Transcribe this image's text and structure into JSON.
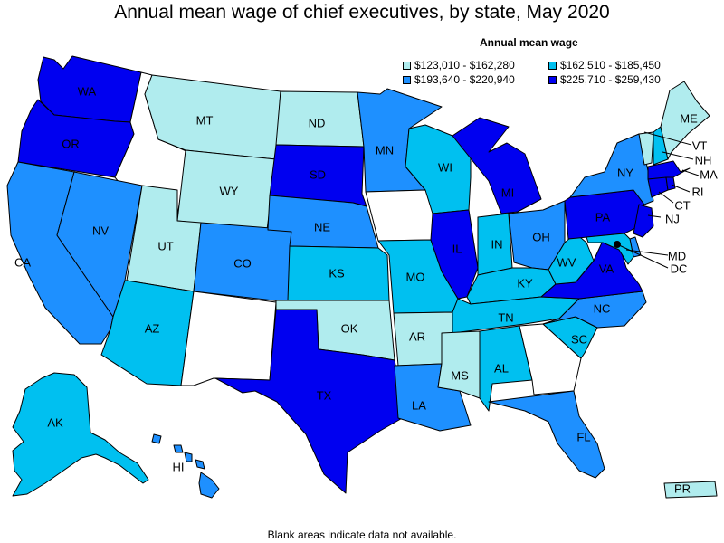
{
  "title": "Annual mean wage of chief executives, by state, May 2020",
  "legend": {
    "title": "Annual mean wage",
    "ranges": [
      {
        "label": "$123,010 - $162,280",
        "color": "#b0ecee"
      },
      {
        "label": "$162,510 - $185,450",
        "color": "#00c0f0"
      },
      {
        "label": "$193,640 - $220,940",
        "color": "#1e90ff"
      },
      {
        "label": "$225,710 - $259,430",
        "color": "#0000f0"
      }
    ]
  },
  "footer": "Blank areas indicate data not available.",
  "colors": {
    "blank": "#ffffff",
    "border": "#000000"
  },
  "states": {
    "WA": {
      "label": "WA",
      "tier": 3
    },
    "OR": {
      "label": "OR",
      "tier": 3
    },
    "CA": {
      "label": "CA",
      "tier": 2
    },
    "NV": {
      "label": "NV",
      "tier": 2
    },
    "ID": {
      "label": "",
      "tier": null
    },
    "MT": {
      "label": "MT",
      "tier": 0
    },
    "WY": {
      "label": "WY",
      "tier": 0
    },
    "UT": {
      "label": "UT",
      "tier": 0
    },
    "AZ": {
      "label": "AZ",
      "tier": 1
    },
    "CO": {
      "label": "CO",
      "tier": 2
    },
    "NM": {
      "label": "",
      "tier": null
    },
    "ND": {
      "label": "ND",
      "tier": 0
    },
    "SD": {
      "label": "SD",
      "tier": 3
    },
    "NE": {
      "label": "NE",
      "tier": 2
    },
    "KS": {
      "label": "KS",
      "tier": 1
    },
    "OK": {
      "label": "OK",
      "tier": 0
    },
    "TX": {
      "label": "TX",
      "tier": 3
    },
    "MN": {
      "label": "MN",
      "tier": 2
    },
    "IA": {
      "label": "",
      "tier": null
    },
    "MO": {
      "label": "MO",
      "tier": 1
    },
    "AR": {
      "label": "AR",
      "tier": 0
    },
    "LA": {
      "label": "LA",
      "tier": 2
    },
    "WI": {
      "label": "WI",
      "tier": 1
    },
    "IL": {
      "label": "IL",
      "tier": 3
    },
    "MI": {
      "label": "MI",
      "tier": 3
    },
    "IN": {
      "label": "IN",
      "tier": 1
    },
    "OH": {
      "label": "OH",
      "tier": 2
    },
    "KY": {
      "label": "KY",
      "tier": 1
    },
    "TN": {
      "label": "TN",
      "tier": 1
    },
    "MS": {
      "label": "MS",
      "tier": 0
    },
    "AL": {
      "label": "AL",
      "tier": 1
    },
    "GA": {
      "label": "",
      "tier": null
    },
    "FL": {
      "label": "FL",
      "tier": 2
    },
    "SC": {
      "label": "SC",
      "tier": 1
    },
    "NC": {
      "label": "NC",
      "tier": 2
    },
    "VA": {
      "label": "VA",
      "tier": 3
    },
    "WV": {
      "label": "WV",
      "tier": 1
    },
    "PA": {
      "label": "PA",
      "tier": 3
    },
    "NY": {
      "label": "NY",
      "tier": 2
    },
    "VT": {
      "label": "VT",
      "tier": 0
    },
    "NH": {
      "label": "NH",
      "tier": 1
    },
    "ME": {
      "label": "ME",
      "tier": 0
    },
    "MA": {
      "label": "MA",
      "tier": 3
    },
    "RI": {
      "label": "RI",
      "tier": 3
    },
    "CT": {
      "label": "CT",
      "tier": 3
    },
    "NJ": {
      "label": "NJ",
      "tier": 3
    },
    "DE": {
      "label": "",
      "tier": 2
    },
    "MD": {
      "label": "MD",
      "tier": 1
    },
    "DC": {
      "label": "DC",
      "tier": 3
    },
    "AK": {
      "label": "AK",
      "tier": 1
    },
    "HI": {
      "label": "HI",
      "tier": 2
    },
    "PR": {
      "label": "PR",
      "tier": 0
    }
  }
}
